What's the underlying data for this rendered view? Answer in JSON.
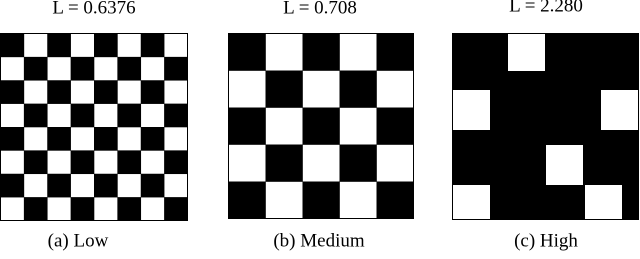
{
  "panels": [
    {
      "title": "L = 0.6376",
      "caption": "(a) Low"
    },
    {
      "title": "L = 0.708",
      "caption": "(b) Medium"
    },
    {
      "title": "L = 2.280",
      "caption": "(c) High"
    }
  ]
}
